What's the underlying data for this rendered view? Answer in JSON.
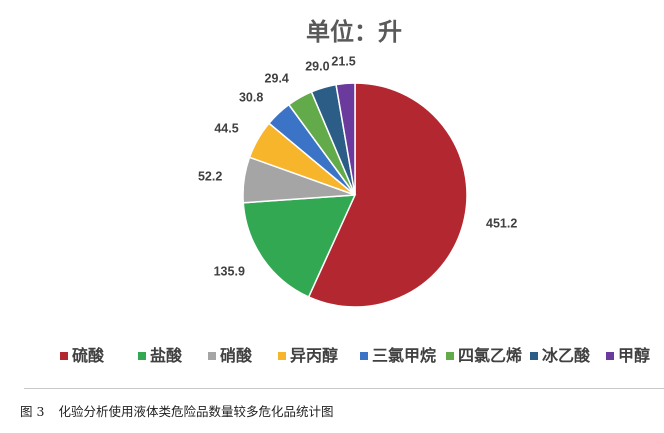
{
  "chart_data": {
    "type": "pie",
    "title": "单位：升",
    "categories": [
      "硫酸",
      "盐酸",
      "硝酸",
      "异丙醇",
      "三氯甲烷",
      "四氯乙烯",
      "冰乙酸",
      "甲醇"
    ],
    "values": [
      451.2,
      135.9,
      52.2,
      44.5,
      30.8,
      29.4,
      29.0,
      21.5
    ],
    "value_labels": [
      "451.2",
      "135.9",
      "52.2",
      "44.5",
      "30.8",
      "29.4",
      "29.0",
      "21.5"
    ],
    "colors": [
      "#b22730",
      "#33a853",
      "#a5a5a5",
      "#f7b52c",
      "#3b73c7",
      "#63aa4a",
      "#2c5d86",
      "#6a3a9d"
    ],
    "legend_position": "bottom",
    "start_angle_deg": 0,
    "direction": "clockwise"
  },
  "caption": {
    "figure_number": "图 3",
    "text": "化验分析使用液体类危险品数量较多危化品统计图"
  }
}
